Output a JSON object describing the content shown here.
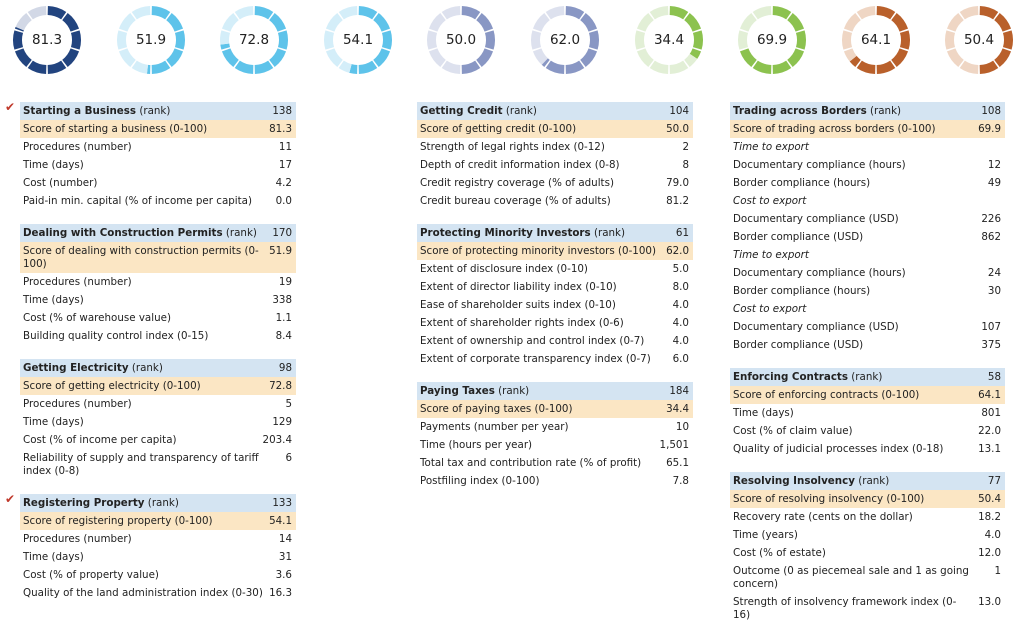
{
  "gauges": [
    {
      "value": "81.3",
      "score": 81.3,
      "color": "#22447f",
      "track": "#d2d8e6"
    },
    {
      "value": "51.9",
      "score": 51.9,
      "color": "#5ec3ea",
      "track": "#d4eef9"
    },
    {
      "value": "72.8",
      "score": 72.8,
      "color": "#5ec3ea",
      "track": "#d4eef9"
    },
    {
      "value": "54.1",
      "score": 54.1,
      "color": "#5ec3ea",
      "track": "#d4eef9"
    },
    {
      "value": "50.0",
      "score": 50.0,
      "color": "#8997c4",
      "track": "#dde1ee"
    },
    {
      "value": "62.0",
      "score": 62.0,
      "color": "#8997c4",
      "track": "#dde1ee"
    },
    {
      "value": "34.4",
      "score": 34.4,
      "color": "#8cc24f",
      "track": "#e2efd6"
    },
    {
      "value": "69.9",
      "score": 69.9,
      "color": "#8cc24f",
      "track": "#e2efd6"
    },
    {
      "value": "64.1",
      "score": 64.1,
      "color": "#b9602b",
      "track": "#efd6c4"
    },
    {
      "value": "50.4",
      "score": 50.4,
      "color": "#b9602b",
      "track": "#efd6c4"
    }
  ],
  "columns": [
    [
      {
        "title": "Starting a Business",
        "rank_label": "(rank)",
        "rank": "138",
        "checked": true,
        "rows": [
          {
            "label": "Score of starting a business (0-100)",
            "value": "81.3",
            "score": true
          },
          {
            "label": "Procedures (number)",
            "value": "11"
          },
          {
            "label": "Time (days)",
            "value": "17"
          },
          {
            "label": "Cost (number)",
            "value": "4.2"
          },
          {
            "label": "Paid-in min. capital (% of income per capita)",
            "value": "0.0"
          }
        ]
      },
      {
        "title": "Dealing with Construction Permits",
        "rank_label": "(rank)",
        "rank": "170",
        "checked": false,
        "rows": [
          {
            "label": "Score of dealing with construction permits (0-100)",
            "value": "51.9",
            "score": true
          },
          {
            "label": "Procedures (number)",
            "value": "19"
          },
          {
            "label": "Time (days)",
            "value": "338"
          },
          {
            "label": "Cost (% of warehouse value)",
            "value": "1.1"
          },
          {
            "label": "Building quality control index (0-15)",
            "value": "8.4"
          }
        ]
      },
      {
        "title": "Getting Electricity",
        "rank_label": "(rank)",
        "rank": "98",
        "checked": false,
        "rows": [
          {
            "label": "Score of getting electricity (0-100)",
            "value": "72.8",
            "score": true
          },
          {
            "label": "Procedures (number)",
            "value": "5"
          },
          {
            "label": "Time (days)",
            "value": "129"
          },
          {
            "label": "Cost (% of income per capita)",
            "value": "203.4"
          },
          {
            "label": "Reliability of supply and transparency of tariff index (0-8)",
            "value": "6"
          }
        ]
      },
      {
        "title": "Registering Property",
        "rank_label": "(rank)",
        "rank": "133",
        "checked": true,
        "rows": [
          {
            "label": "Score of registering property (0-100)",
            "value": "54.1",
            "score": true
          },
          {
            "label": "Procedures (number)",
            "value": "14"
          },
          {
            "label": "Time (days)",
            "value": "31"
          },
          {
            "label": "Cost (% of property value)",
            "value": "3.6"
          },
          {
            "label": "Quality of the land administration index (0-30)",
            "value": "16.3"
          }
        ]
      }
    ],
    [
      {
        "title": "Getting Credit",
        "rank_label": "(rank)",
        "rank": "104",
        "checked": false,
        "rows": [
          {
            "label": "Score of getting credit (0-100)",
            "value": "50.0",
            "score": true
          },
          {
            "label": "Strength of legal rights index (0-12)",
            "value": "2"
          },
          {
            "label": "Depth of credit information index (0-8)",
            "value": "8"
          },
          {
            "label": "Credit registry coverage (% of adults)",
            "value": "79.0"
          },
          {
            "label": "Credit bureau coverage (% of adults)",
            "value": "81.2"
          }
        ]
      },
      {
        "title": "Protecting Minority Investors",
        "rank_label": "(rank)",
        "rank": "61",
        "checked": false,
        "rows": [
          {
            "label": "Score of protecting minority investors (0-100)",
            "value": "62.0",
            "score": true
          },
          {
            "label": "Extent of disclosure index (0-10)",
            "value": "5.0"
          },
          {
            "label": "Extent of director liability index (0-10)",
            "value": "8.0"
          },
          {
            "label": "Ease of shareholder suits index (0-10)",
            "value": "4.0"
          },
          {
            "label": "Extent of shareholder rights index (0-6)",
            "value": "4.0"
          },
          {
            "label": "Extent of ownership and control index (0-7)",
            "value": "4.0"
          },
          {
            "label": "Extent of corporate transparency index (0-7)",
            "value": "6.0"
          }
        ]
      },
      {
        "title": "Paying Taxes",
        "rank_label": "(rank)",
        "rank": "184",
        "checked": false,
        "rows": [
          {
            "label": "Score of paying taxes (0-100)",
            "value": "34.4",
            "score": true
          },
          {
            "label": "Payments (number per year)",
            "value": "10"
          },
          {
            "label": "Time (hours per year)",
            "value": "1,501"
          },
          {
            "label": "Total tax and contribution rate (% of profit)",
            "value": "65.1"
          },
          {
            "label": "Postfiling index (0-100)",
            "value": "7.8"
          }
        ]
      }
    ],
    [
      {
        "title": "Trading across Borders",
        "rank_label": "(rank)",
        "rank": "108",
        "checked": false,
        "rows": [
          {
            "label": "Score of trading across borders (0-100)",
            "value": "69.9",
            "score": true
          },
          {
            "label": "Time to export",
            "value": "",
            "italic": true
          },
          {
            "label": "Documentary compliance (hours)",
            "value": "12"
          },
          {
            "label": "Border compliance (hours)",
            "value": "49"
          },
          {
            "label": "Cost to export",
            "value": "",
            "italic": true
          },
          {
            "label": "Documentary compliance (USD)",
            "value": "226"
          },
          {
            "label": "Border compliance (USD)",
            "value": "862"
          },
          {
            "label": "Time to export",
            "value": "",
            "italic": true
          },
          {
            "label": "Documentary compliance (hours)",
            "value": "24"
          },
          {
            "label": "Border compliance (hours)",
            "value": "30"
          },
          {
            "label": "Cost to export",
            "value": "",
            "italic": true
          },
          {
            "label": "Documentary compliance (USD)",
            "value": "107"
          },
          {
            "label": "Border compliance (USD)",
            "value": "375"
          }
        ]
      },
      {
        "title": "Enforcing Contracts",
        "rank_label": "(rank)",
        "rank": "58",
        "checked": false,
        "rows": [
          {
            "label": "Score of enforcing contracts (0-100)",
            "value": "64.1",
            "score": true
          },
          {
            "label": "Time (days)",
            "value": "801"
          },
          {
            "label": "Cost (% of claim value)",
            "value": "22.0"
          },
          {
            "label": "Quality of judicial processes index (0-18)",
            "value": "13.1"
          }
        ]
      },
      {
        "title": "Resolving Insolvency",
        "rank_label": "(rank)",
        "rank": "77",
        "checked": false,
        "rows": [
          {
            "label": "Score of resolving insolvency (0-100)",
            "value": "50.4",
            "score": true
          },
          {
            "label": "Recovery rate (cents on the dollar)",
            "value": "18.2"
          },
          {
            "label": "Time (years)",
            "value": "4.0"
          },
          {
            "label": "Cost (% of estate)",
            "value": "12.0"
          },
          {
            "label": "Outcome (0 as piecemeal sale and 1 as going concern)",
            "value": "1"
          },
          {
            "label": "Strength of insolvency framework index (0-16)",
            "value": "13.0"
          }
        ]
      }
    ]
  ]
}
